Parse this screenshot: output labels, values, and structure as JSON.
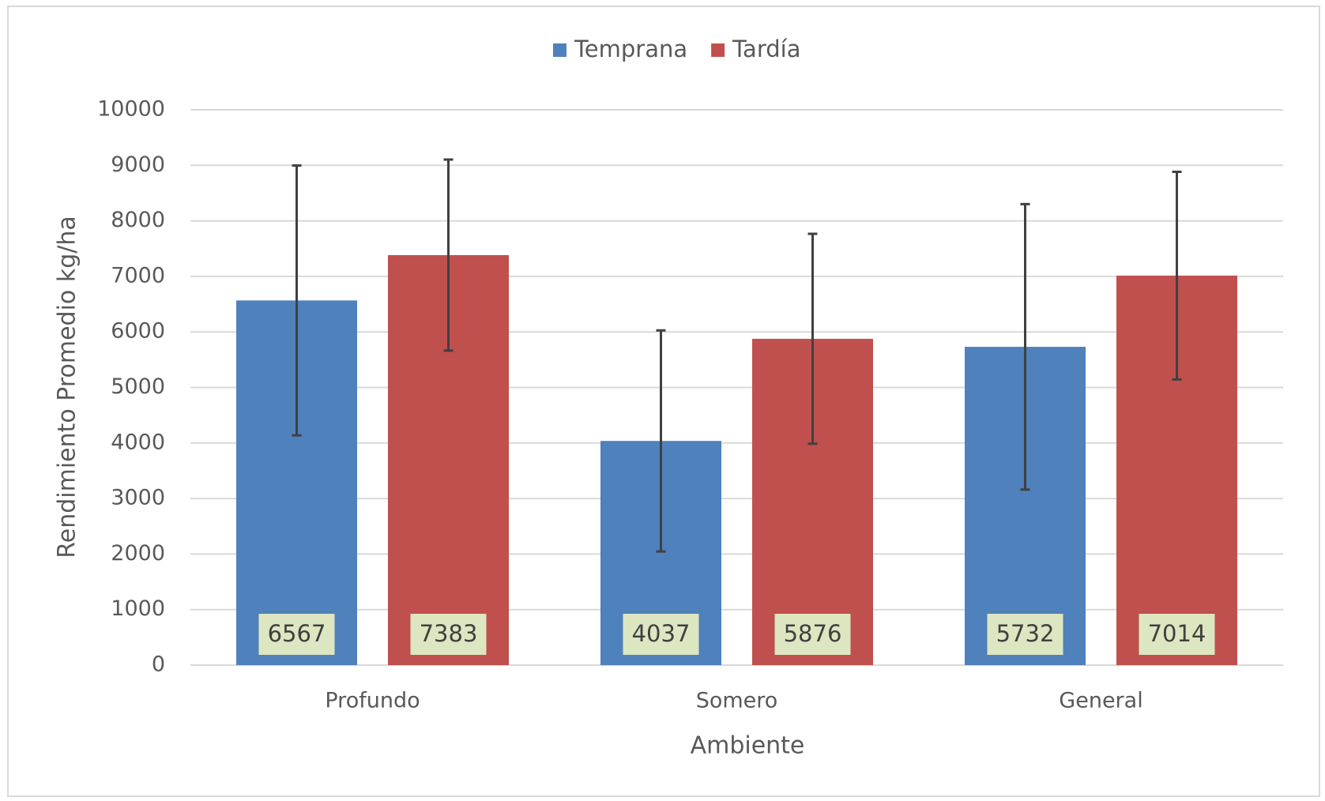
{
  "chart_data": {
    "type": "bar",
    "x_label": "Ambiente",
    "y_label": "Rendimiento Promedio kg/ha",
    "categories": [
      "Profundo",
      "Somero",
      "General"
    ],
    "series": [
      {
        "name": "Temprana",
        "color": "#4f81bd",
        "values": [
          6567,
          4037,
          5732
        ],
        "errors": [
          2430,
          1990,
          2570
        ]
      },
      {
        "name": "Tardía",
        "color": "#c0504d",
        "values": [
          7383,
          5876,
          7014
        ],
        "errors": [
          1720,
          1890,
          1870
        ]
      }
    ],
    "ylim": [
      0,
      10000
    ],
    "yticks": [
      0,
      1000,
      2000,
      3000,
      4000,
      5000,
      6000,
      7000,
      8000,
      9000,
      10000
    ],
    "grid": true,
    "legend": "top"
  }
}
